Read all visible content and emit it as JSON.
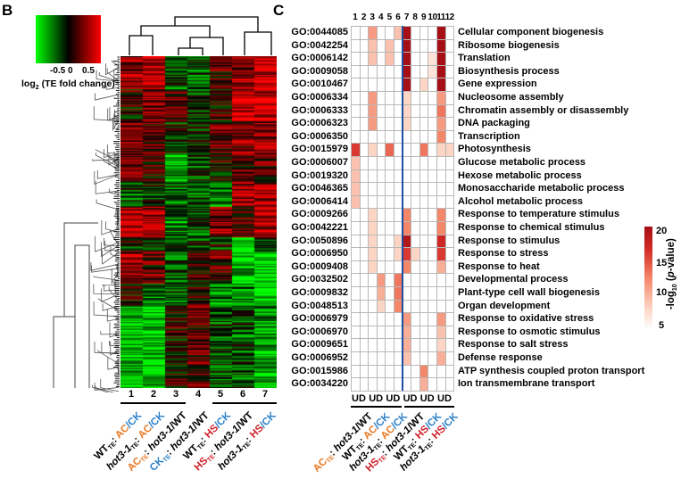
{
  "chart_data": [
    {
      "panel": "B",
      "type": "heatmap",
      "colorbar": {
        "ticks": [
          "-0.5",
          "0",
          "0.5"
        ],
        "label_main": "log",
        "label_sub": "2",
        "label_rest": " (TE fold change)",
        "range": [
          -1,
          1
        ],
        "low_color": "#00ff00",
        "mid_color": "#000000",
        "high_color": "#ff0000"
      },
      "columns": [
        "1",
        "2",
        "3",
        "4",
        "5",
        "6",
        "7"
      ],
      "column_labels": [
        [
          {
            "t": "WT"
          },
          {
            "t": "TE",
            "sub": true
          },
          {
            "t": ": "
          },
          {
            "t": "AC",
            "c": "#e87722"
          },
          {
            "t": "/CK",
            "c": "#2a7fc8"
          }
        ],
        [
          {
            "t": "hot3-1",
            "i": true
          },
          {
            "t": "TE",
            "sub": true
          },
          {
            "t": ": "
          },
          {
            "t": "AC",
            "c": "#e87722"
          },
          {
            "t": "/CK",
            "c": "#2a7fc8"
          }
        ],
        [
          {
            "t": "AC",
            "c": "#e87722"
          },
          {
            "t": "TE",
            "sub": true,
            "c": "#e87722"
          },
          {
            "t": ": "
          },
          {
            "t": "hot3-1",
            "i": true
          },
          {
            "t": "/WT"
          }
        ],
        [
          {
            "t": "CK",
            "c": "#2a7fc8"
          },
          {
            "t": "TE",
            "sub": true,
            "c": "#2a7fc8"
          },
          {
            "t": ": "
          },
          {
            "t": "hot3-1",
            "i": true
          },
          {
            "t": "/WT"
          }
        ],
        [
          {
            "t": "WT"
          },
          {
            "t": "TE",
            "sub": true
          },
          {
            "t": ": "
          },
          {
            "t": "HS",
            "c": "#d0202a"
          },
          {
            "t": "/CK",
            "c": "#2a7fc8"
          }
        ],
        [
          {
            "t": "HS",
            "c": "#d0202a"
          },
          {
            "t": "TE",
            "sub": true,
            "c": "#d0202a"
          },
          {
            "t": ": "
          },
          {
            "t": "hot3-1",
            "i": true
          },
          {
            "t": "/WT"
          }
        ],
        [
          {
            "t": "hot3-1",
            "i": true
          },
          {
            "t": "TE",
            "sub": true
          },
          {
            "t": ": "
          },
          {
            "t": "HS",
            "c": "#d0202a"
          },
          {
            "t": "/CK",
            "c": "#2a7fc8"
          }
        ]
      ],
      "column_groups": [
        [
          "1",
          "2",
          "3"
        ],
        [
          "5",
          "6",
          "7"
        ]
      ],
      "row_clusters": [
        {
          "rows": 30,
          "mean": [
            0.6,
            0.6,
            -0.3,
            -0.3,
            0.2,
            0.5,
            0.8
          ]
        },
        {
          "rows": 30,
          "mean": [
            0.1,
            0.5,
            0.3,
            -0.2,
            0.1,
            0.8,
            0.8
          ]
        },
        {
          "rows": 30,
          "mean": [
            0.4,
            0.3,
            -0.1,
            -0.1,
            0.3,
            0.4,
            0.6
          ]
        },
        {
          "rows": 25,
          "mean": [
            0.5,
            0.2,
            -0.6,
            -0.3,
            0.1,
            0.2,
            0.3
          ]
        },
        {
          "rows": 22,
          "mean": [
            -0.2,
            -0.1,
            -0.3,
            -0.4,
            -0.5,
            0.7,
            0.7
          ]
        },
        {
          "rows": 28,
          "mean": [
            0.7,
            0.6,
            -0.4,
            -0.3,
            0.5,
            0.3,
            0.7
          ]
        },
        {
          "rows": 12,
          "mean": [
            -0.1,
            -0.1,
            -0.2,
            -0.2,
            -0.1,
            -1.0,
            -0.4
          ]
        },
        {
          "rows": 30,
          "mean": [
            0.6,
            0.3,
            -0.4,
            0.1,
            0.3,
            -0.8,
            -0.8
          ]
        },
        {
          "rows": 20,
          "mean": [
            0.1,
            -0.5,
            -0.3,
            0.1,
            -0.5,
            -0.5,
            -0.9
          ]
        },
        {
          "rows": 75,
          "mean": [
            -0.8,
            -0.8,
            0.1,
            0.3,
            -0.3,
            -0.3,
            -0.6
          ]
        }
      ]
    },
    {
      "panel": "C",
      "type": "heatmap",
      "colorbar": {
        "ticks": [
          20,
          15,
          10,
          5
        ],
        "range": [
          0,
          20
        ],
        "label_pre": "-log",
        "label_sub": "10",
        "label_mid": " (",
        "label_it": "p",
        "label_post": "-value)",
        "low_color": "#ffffff",
        "high_color": "#a50f15"
      },
      "columns": [
        "1",
        "2",
        "3",
        "4",
        "5",
        "6",
        "7",
        "8",
        "9",
        "10",
        "11",
        "12"
      ],
      "column_direction_labels": [
        "UD",
        "UD",
        "UD",
        "UD",
        "UD",
        "UD"
      ],
      "column_pair_labels": [
        [
          {
            "t": "AC",
            "c": "#e87722"
          },
          {
            "t": "TE",
            "sub": true,
            "c": "#e87722"
          },
          {
            "t": ": "
          },
          {
            "t": "hot3-1",
            "i": true
          },
          {
            "t": "/WT"
          }
        ],
        [
          {
            "t": "WT"
          },
          {
            "t": "TE",
            "sub": true
          },
          {
            "t": ": "
          },
          {
            "t": "AC",
            "c": "#e87722"
          },
          {
            "t": "/CK",
            "c": "#2a7fc8"
          }
        ],
        [
          {
            "t": "hot3-1",
            "i": true
          },
          {
            "t": "TE",
            "sub": true
          },
          {
            "t": ": "
          },
          {
            "t": "AC",
            "c": "#e87722"
          },
          {
            "t": "/CK",
            "c": "#2a7fc8"
          }
        ],
        [
          {
            "t": "HS",
            "c": "#d0202a"
          },
          {
            "t": "TE",
            "sub": true,
            "c": "#d0202a"
          },
          {
            "t": ": "
          },
          {
            "t": "hot3-1",
            "i": true
          },
          {
            "t": "/WT"
          }
        ],
        [
          {
            "t": "WT"
          },
          {
            "t": "TE",
            "sub": true
          },
          {
            "t": ": "
          },
          {
            "t": "HS",
            "c": "#d0202a"
          },
          {
            "t": "/CK",
            "c": "#2a7fc8"
          }
        ],
        [
          {
            "t": "hot3-1",
            "i": true
          },
          {
            "t": "TE",
            "sub": true
          },
          {
            "t": ": "
          },
          {
            "t": "HS",
            "c": "#d0202a"
          },
          {
            "t": "/CK",
            "c": "#2a7fc8"
          }
        ]
      ],
      "rows": [
        {
          "go": "GO:0044085",
          "term": "Cellular component biogenesis",
          "values": [
            0,
            0,
            6,
            0,
            0,
            4,
            20,
            0,
            0,
            0,
            20,
            0
          ]
        },
        {
          "go": "GO:0042254",
          "term": "Ribosome biogenesis",
          "values": [
            0,
            0,
            4,
            0,
            4,
            0,
            20,
            0,
            0,
            0,
            20,
            0
          ]
        },
        {
          "go": "GO:0006142",
          "term": "Translation",
          "values": [
            0,
            0,
            4,
            0,
            4,
            0,
            20,
            0,
            0,
            2,
            20,
            0
          ]
        },
        {
          "go": "GO:0009058",
          "term": "Biosynthesis process",
          "values": [
            0,
            0,
            0,
            0,
            0,
            0,
            20,
            0,
            0,
            2,
            20,
            0
          ]
        },
        {
          "go": "GO:0010467",
          "term": "Gene expression",
          "values": [
            0,
            0,
            0,
            0,
            0,
            0,
            20,
            0,
            3,
            0,
            20,
            0
          ]
        },
        {
          "go": "GO:0006334",
          "term": "Nucleosome assembly",
          "values": [
            0,
            0,
            6,
            0,
            0,
            0,
            3,
            0,
            0,
            0,
            6,
            0
          ]
        },
        {
          "go": "GO:0006333",
          "term": "Chromatin assembly or disassembly",
          "values": [
            0,
            0,
            6,
            0,
            0,
            0,
            3,
            0,
            0,
            0,
            8,
            0
          ]
        },
        {
          "go": "GO:0006323",
          "term": "DNA packaging",
          "values": [
            0,
            0,
            6,
            0,
            0,
            0,
            3,
            0,
            0,
            0,
            6,
            0
          ]
        },
        {
          "go": "GO:0006350",
          "term": "Transcription",
          "values": [
            0,
            0,
            0,
            0,
            0,
            0,
            0,
            0,
            0,
            0,
            7,
            0
          ]
        },
        {
          "go": "GO:0015979",
          "term": "Photosynthesis",
          "values": [
            12,
            0,
            3,
            0,
            9,
            0,
            0,
            0,
            8,
            0,
            3,
            3
          ]
        },
        {
          "go": "GO:0006007",
          "term": "Glucose metabolic process",
          "values": [
            4,
            0,
            0,
            0,
            0,
            0,
            0,
            0,
            0,
            0,
            0,
            0
          ]
        },
        {
          "go": "GO:0019320",
          "term": "Hexose metabolic process",
          "values": [
            4,
            0,
            0,
            0,
            0,
            0,
            0,
            0,
            0,
            0,
            0,
            0
          ]
        },
        {
          "go": "GO:0046365",
          "term": "Monosaccharide metabolic process",
          "values": [
            4,
            0,
            0,
            0,
            0,
            0,
            0,
            0,
            0,
            0,
            0,
            0
          ]
        },
        {
          "go": "GO:0006414",
          "term": "Alcohol metabolic process",
          "values": [
            4,
            0,
            0,
            0,
            0,
            0,
            0,
            0,
            0,
            0,
            0,
            0
          ]
        },
        {
          "go": "GO:0009266",
          "term": "Response to temperature stimulus",
          "values": [
            0,
            0,
            3,
            0,
            0,
            0,
            7,
            0,
            0,
            0,
            7,
            0
          ]
        },
        {
          "go": "GO:0042221",
          "term": "Response to chemical stimulus",
          "values": [
            0,
            0,
            3,
            0,
            0,
            0,
            7,
            0,
            0,
            0,
            7,
            0
          ]
        },
        {
          "go": "GO:0050896",
          "term": "Response to stimulus",
          "values": [
            0,
            0,
            3,
            0,
            0,
            3,
            18,
            0,
            0,
            0,
            14,
            0
          ]
        },
        {
          "go": "GO:0006950",
          "term": "Response to stress",
          "values": [
            0,
            0,
            3,
            0,
            0,
            3,
            12,
            3,
            0,
            0,
            12,
            0
          ]
        },
        {
          "go": "GO:0009408",
          "term": "Response to heat",
          "values": [
            0,
            0,
            3,
            0,
            0,
            0,
            7,
            0,
            0,
            0,
            5,
            0
          ]
        },
        {
          "go": "GO:0032502",
          "term": "Developmental process",
          "values": [
            0,
            0,
            0,
            6,
            0,
            8,
            0,
            0,
            0,
            0,
            0,
            0
          ]
        },
        {
          "go": "GO:0009832",
          "term": "Plant-type cell wall biogenesis",
          "values": [
            0,
            0,
            0,
            5,
            0,
            8,
            0,
            0,
            0,
            0,
            0,
            0
          ]
        },
        {
          "go": "GO:0048513",
          "term": "Organ development",
          "values": [
            0,
            0,
            0,
            3,
            0,
            7,
            0,
            0,
            0,
            0,
            0,
            0
          ]
        },
        {
          "go": "GO:0006979",
          "term": "Response to oxidative stress",
          "values": [
            0,
            0,
            0,
            0,
            0,
            0,
            6,
            0,
            0,
            0,
            6,
            0
          ]
        },
        {
          "go": "GO:0006970",
          "term": "Response to osmotic stimulus",
          "values": [
            0,
            0,
            0,
            0,
            0,
            0,
            5,
            0,
            0,
            0,
            4,
            0
          ]
        },
        {
          "go": "GO:0009651",
          "term": "Response to salt stress",
          "values": [
            0,
            0,
            0,
            0,
            0,
            0,
            5,
            0,
            0,
            0,
            3,
            0
          ]
        },
        {
          "go": "GO:0006952",
          "term": "Defense response",
          "values": [
            0,
            0,
            0,
            0,
            0,
            0,
            4,
            0,
            0,
            0,
            5,
            0
          ]
        },
        {
          "go": "GO:0015986",
          "term": "ATP synthesis coupled proton transport",
          "values": [
            0,
            0,
            0,
            0,
            0,
            0,
            0,
            0,
            7,
            0,
            0,
            0
          ]
        },
        {
          "go": "GO:0034220",
          "term": "Ion transmembrane transport",
          "values": [
            0,
            0,
            0,
            0,
            0,
            0,
            0,
            0,
            5,
            0,
            0,
            0
          ]
        }
      ]
    }
  ],
  "panels": {
    "b": "B",
    "c": "C"
  },
  "divider_color": "#1f4fa0"
}
